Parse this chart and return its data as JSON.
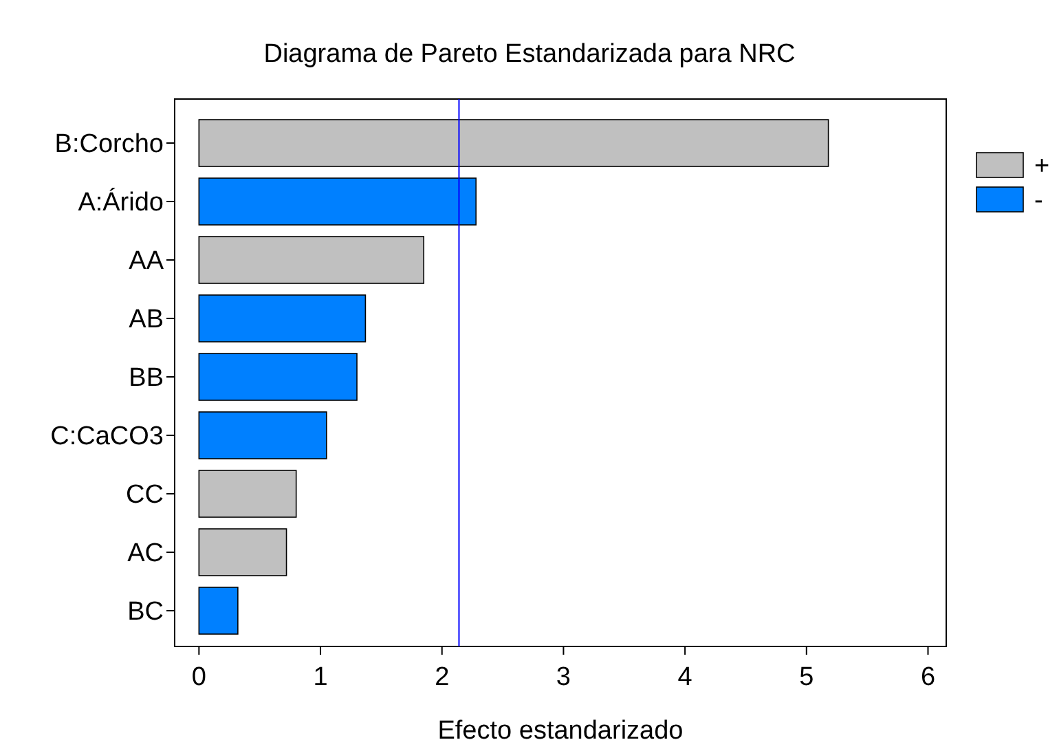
{
  "chart_data": {
    "type": "bar",
    "orientation": "horizontal",
    "title": "Diagrama de Pareto Estandarizada para NRC",
    "xlabel": "Efecto estandarizado",
    "categories": [
      "B:Corcho",
      "A:Árido",
      "AA",
      "AB",
      "BB",
      "C:CaCO3",
      "CC",
      "AC",
      "BC"
    ],
    "series": [
      {
        "name": "+",
        "color": "#c0c0c0",
        "values": [
          5.18,
          null,
          1.85,
          null,
          null,
          null,
          0.8,
          0.72,
          null
        ]
      },
      {
        "name": "-",
        "color": "#0080ff",
        "values": [
          null,
          2.28,
          null,
          1.37,
          1.3,
          1.05,
          null,
          null,
          0.32
        ]
      }
    ],
    "xlim": [
      -0.2,
      6.15
    ],
    "xticks": [
      0,
      1,
      2,
      3,
      4,
      5,
      6
    ],
    "ref_lines": [
      {
        "axis": "x",
        "value": 2.14,
        "color": "#0000ff"
      }
    ],
    "legend": "right",
    "grid": false
  }
}
